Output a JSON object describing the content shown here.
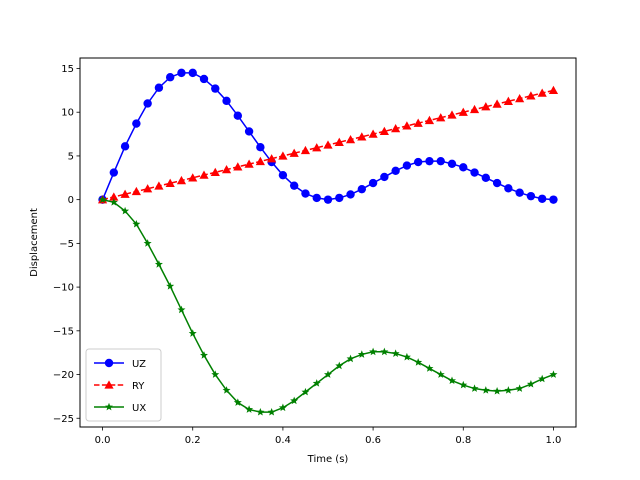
{
  "chart_data": {
    "type": "line",
    "title": "",
    "xlabel": "Time (s)",
    "ylabel": "Displacement",
    "xlim": [
      -0.05,
      1.05
    ],
    "ylim": [
      -26,
      16.2
    ],
    "xticks": [
      0.0,
      0.2,
      0.4,
      0.6,
      0.8,
      1.0
    ],
    "xtick_labels": [
      "0.0",
      "0.2",
      "0.4",
      "0.6",
      "0.8",
      "1.0"
    ],
    "yticks": [
      -25,
      -20,
      -15,
      -10,
      -5,
      0,
      5,
      10,
      15
    ],
    "ytick_labels": [
      "−25",
      "−20",
      "−15",
      "−10",
      "−5",
      "0",
      "5",
      "10",
      "15"
    ],
    "grid": false,
    "legend_position": "lower-left",
    "x": [
      0.0,
      0.025,
      0.05,
      0.075,
      0.1,
      0.125,
      0.15,
      0.175,
      0.2,
      0.225,
      0.25,
      0.275,
      0.3,
      0.325,
      0.35,
      0.375,
      0.4,
      0.425,
      0.45,
      0.475,
      0.5,
      0.525,
      0.55,
      0.575,
      0.6,
      0.625,
      0.65,
      0.675,
      0.7,
      0.725,
      0.75,
      0.775,
      0.8,
      0.825,
      0.85,
      0.875,
      0.9,
      0.925,
      0.95,
      0.975,
      1.0
    ],
    "series": [
      {
        "name": "UZ",
        "color": "#0000ff",
        "line_style": "solid",
        "marker": "circle",
        "values": [
          0.0,
          3.1,
          6.1,
          8.7,
          11.0,
          12.8,
          14.0,
          14.5,
          14.5,
          13.8,
          12.7,
          11.3,
          9.6,
          7.8,
          6.0,
          4.3,
          2.8,
          1.6,
          0.7,
          0.2,
          0.0,
          0.2,
          0.6,
          1.2,
          1.9,
          2.6,
          3.3,
          3.9,
          4.3,
          4.4,
          4.4,
          4.1,
          3.7,
          3.1,
          2.5,
          1.9,
          1.3,
          0.8,
          0.4,
          0.1,
          0.0
        ]
      },
      {
        "name": "RY",
        "color": "#ff0000",
        "line_style": "dashed",
        "marker": "triangle-up",
        "values": [
          0.0,
          0.3125,
          0.625,
          0.9375,
          1.25,
          1.5625,
          1.875,
          2.1875,
          2.5,
          2.8125,
          3.125,
          3.4375,
          3.75,
          4.0625,
          4.375,
          4.6875,
          5.0,
          5.3125,
          5.625,
          5.9375,
          6.25,
          6.5625,
          6.875,
          7.1875,
          7.5,
          7.8125,
          8.125,
          8.4375,
          8.75,
          9.0625,
          9.375,
          9.6875,
          10.0,
          10.3125,
          10.625,
          10.9375,
          11.25,
          11.5625,
          11.875,
          12.1875,
          12.5
        ]
      },
      {
        "name": "UX",
        "color": "#008000",
        "line_style": "solid",
        "marker": "star",
        "values": [
          0.0,
          -0.3,
          -1.3,
          -2.8,
          -5.0,
          -7.4,
          -9.9,
          -12.6,
          -15.3,
          -17.8,
          -20.0,
          -21.8,
          -23.2,
          -24.0,
          -24.3,
          -24.3,
          -23.8,
          -23.0,
          -22.0,
          -21.0,
          -20.0,
          -19.0,
          -18.2,
          -17.7,
          -17.4,
          -17.4,
          -17.6,
          -18.0,
          -18.6,
          -19.3,
          -20.0,
          -20.7,
          -21.2,
          -21.6,
          -21.8,
          -21.9,
          -21.8,
          -21.6,
          -21.1,
          -20.5,
          -20.0
        ]
      }
    ]
  }
}
